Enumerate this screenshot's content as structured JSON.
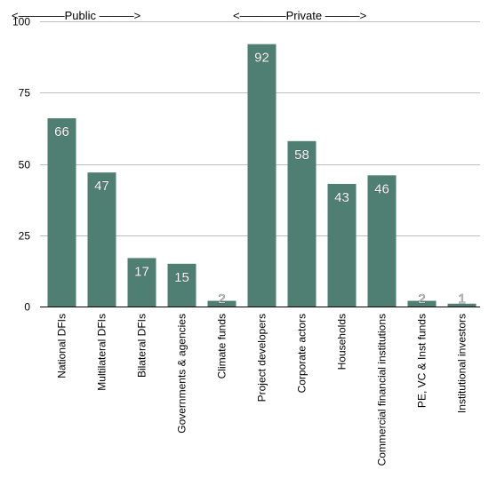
{
  "chart_data": {
    "type": "bar",
    "categories": [
      "National DFIs",
      "Multilateral DFIs",
      "Bilateral DFIs",
      "Governments & agencies",
      "Climate funds",
      "Project developers",
      "Corporate actors",
      "Households",
      "Commercial financial institutions",
      "PE, VC & Inst funds",
      "Institutional investors"
    ],
    "values": [
      66,
      47,
      17,
      15,
      2,
      92,
      58,
      43,
      46,
      2,
      1
    ],
    "data_labels": [
      "66",
      "47",
      "17",
      "15",
      "2",
      "92",
      "58",
      "43",
      "46",
      "2",
      "1"
    ],
    "ylim": [
      0,
      100
    ],
    "yticks": [
      0,
      25,
      50,
      75,
      100
    ],
    "ytick_labels": [
      "0",
      "25",
      "50",
      "75",
      "100"
    ],
    "grid": true,
    "bar_color": "#4e7f72",
    "group_labels": [
      {
        "text": "<————Public ———>",
        "from": 0,
        "to": 4
      },
      {
        "text": "<————Private ———>",
        "from": 5,
        "to": 10
      }
    ]
  }
}
